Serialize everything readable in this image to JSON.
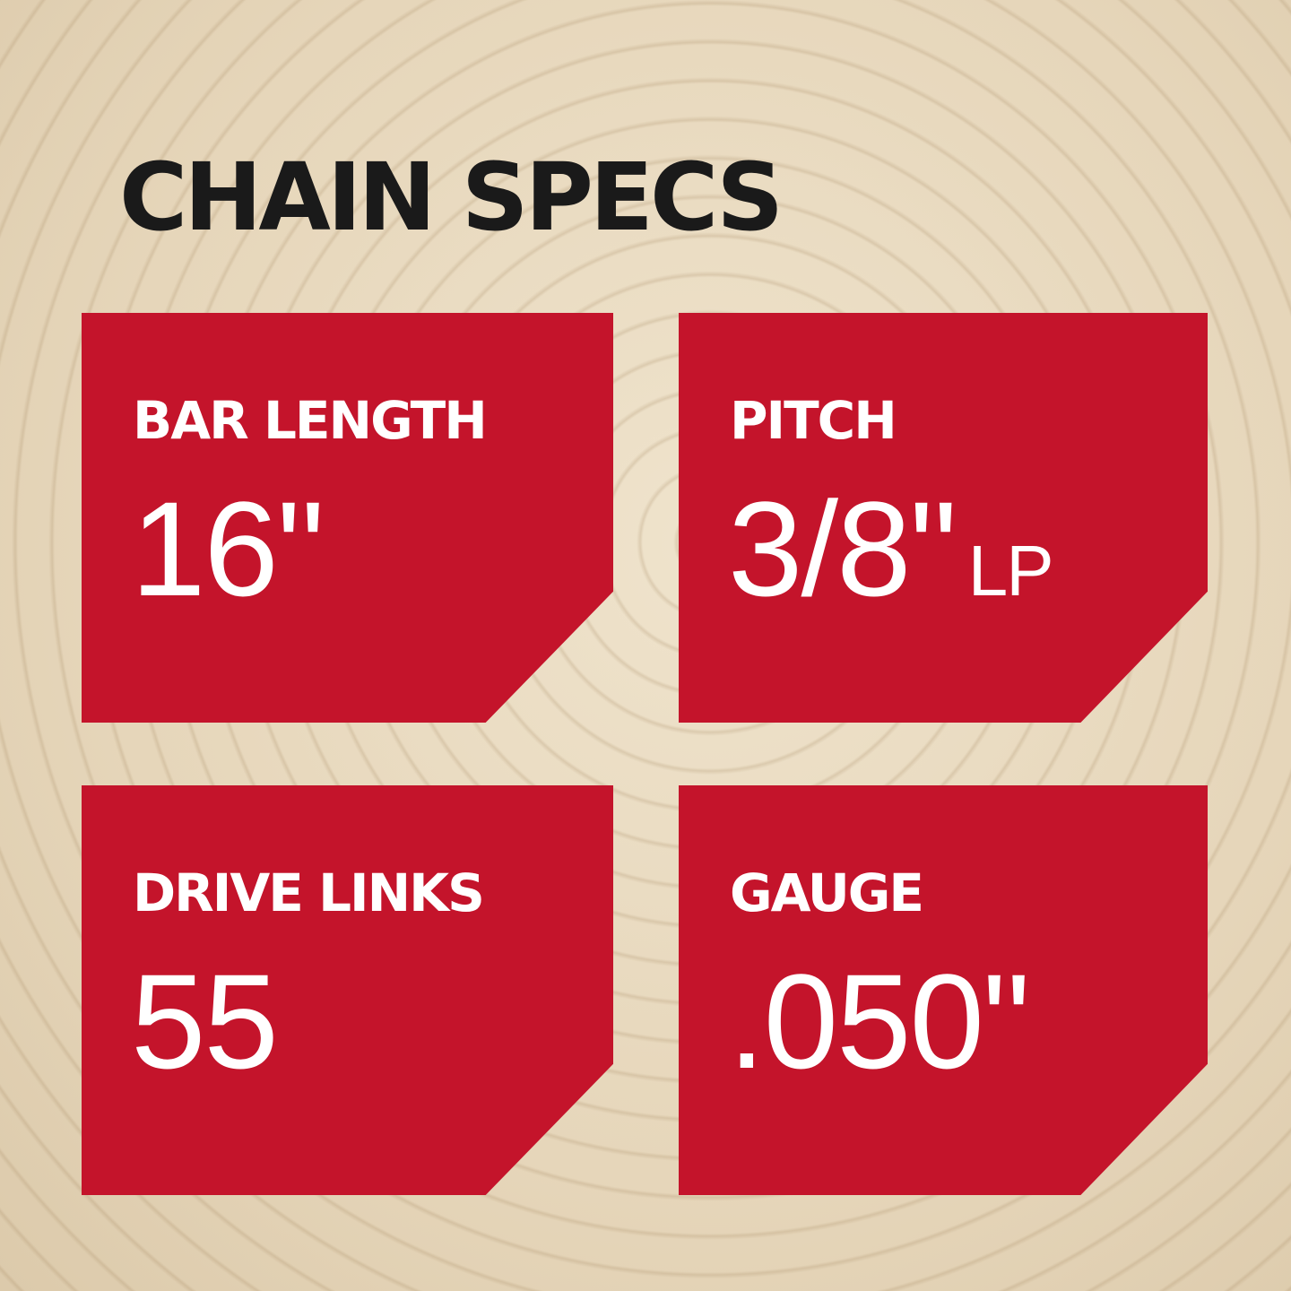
{
  "title": "CHAIN SPECS",
  "colors": {
    "card_red": "#c4142b",
    "title_text": "#1a1a1a",
    "background": "#e6d6ba"
  },
  "specs": [
    {
      "label": "BAR LENGTH",
      "value": "16\"",
      "suffix": ""
    },
    {
      "label": "PITCH",
      "value": "3/8\"",
      "suffix": "LP"
    },
    {
      "label": "DRIVE LINKS",
      "value": "55",
      "suffix": ""
    },
    {
      "label": "GAUGE",
      "value": ".050\"",
      "suffix": ""
    }
  ]
}
